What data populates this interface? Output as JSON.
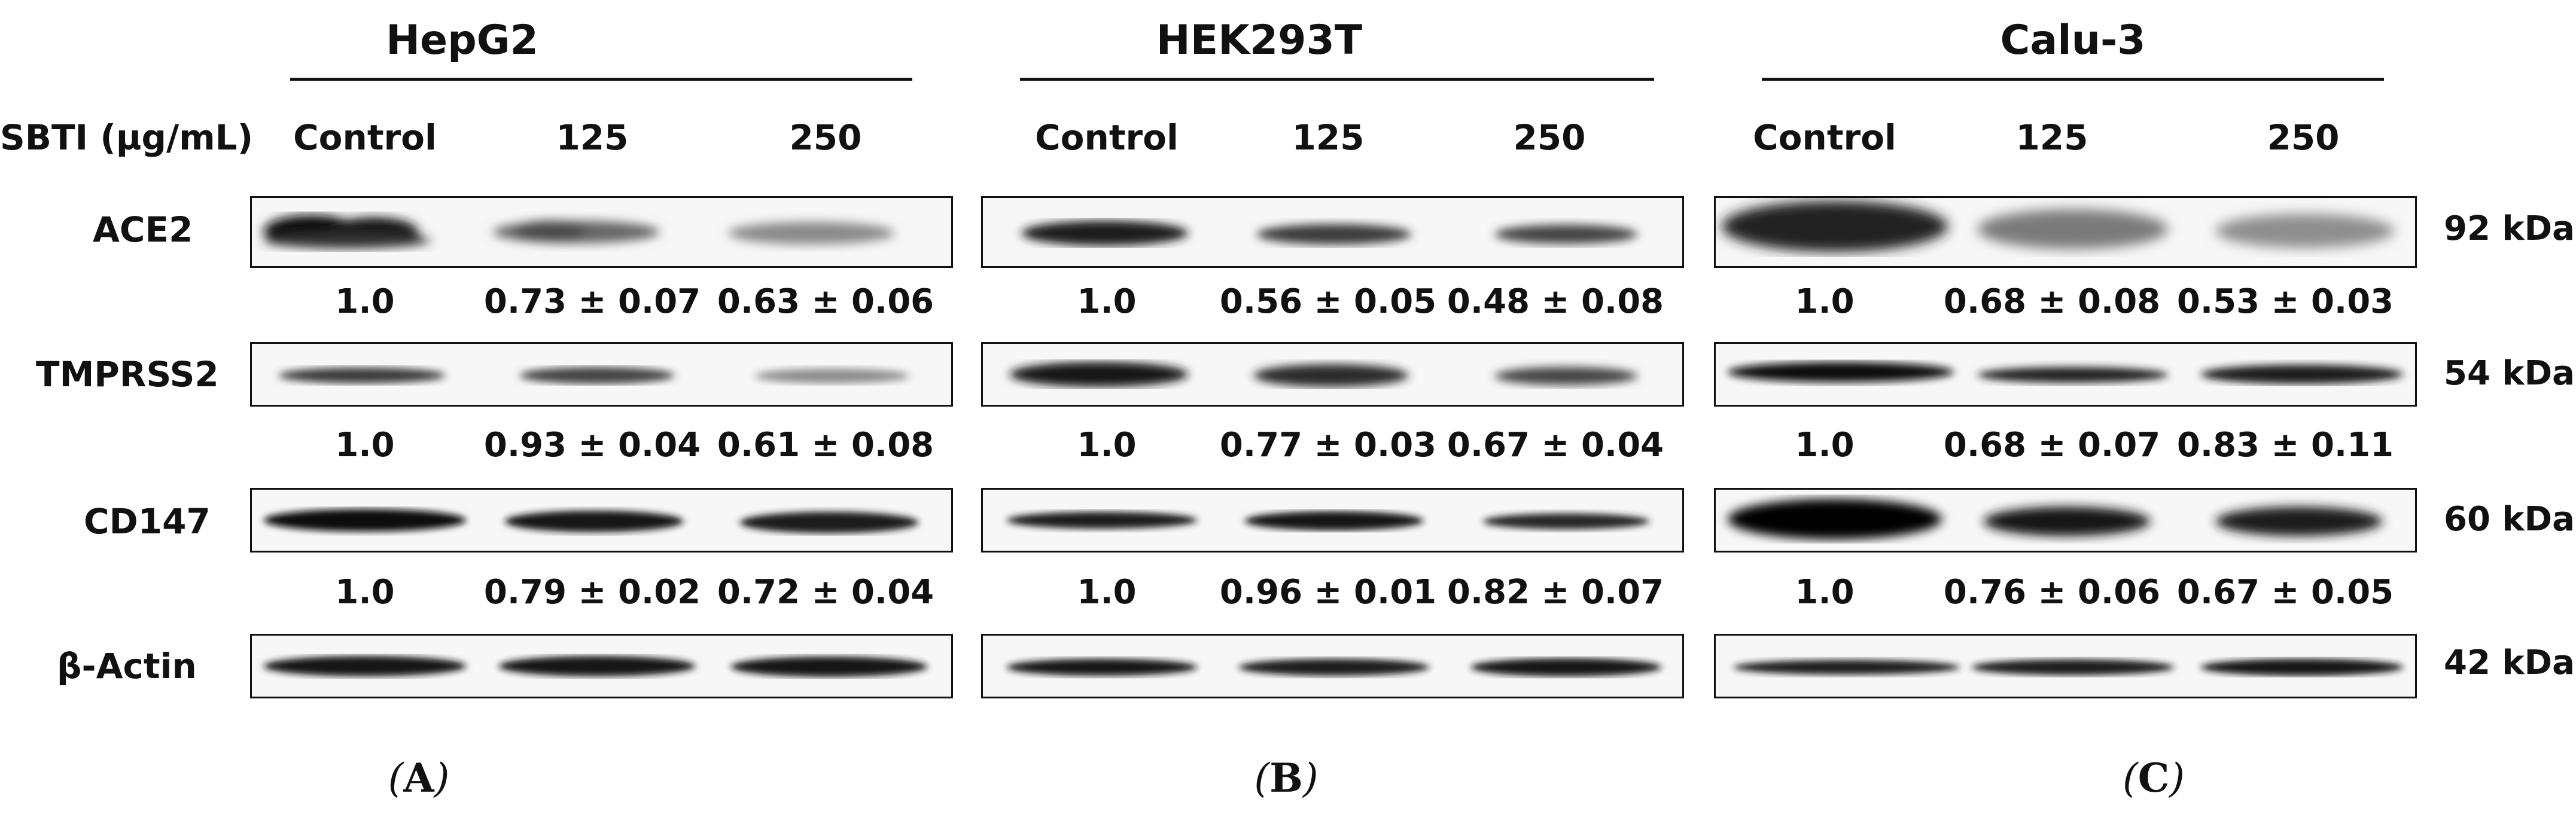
{
  "panels": [
    {
      "title": "HepG2",
      "label_open": "(",
      "label_letter": "A",
      "label_close": ")",
      "columns": [
        "Control",
        "125",
        "250"
      ],
      "quant": [
        [
          "1.0",
          "0.73 ± 0.07",
          "0.63 ± 0.06"
        ],
        [
          "1.0",
          "0.93 ± 0.04",
          "0.61 ± 0.08"
        ],
        [
          "1.0",
          "0.79 ± 0.02",
          "0.72 ± 0.04"
        ]
      ]
    },
    {
      "title": "HEK293T",
      "label_open": "(",
      "label_letter": "B",
      "label_close": ")",
      "columns": [
        "Control",
        "125",
        "250"
      ],
      "quant": [
        [
          "1.0",
          "0.56 ± 0.05",
          "0.48 ± 0.08"
        ],
        [
          "1.0",
          "0.77 ± 0.03",
          "0.67 ± 0.04"
        ],
        [
          "1.0",
          "0.96 ± 0.01",
          "0.82 ± 0.07"
        ]
      ]
    },
    {
      "title": "Calu-3",
      "label_open": "(",
      "label_letter": "C",
      "label_close": ")",
      "columns": [
        "Control",
        "125",
        "250"
      ],
      "quant": [
        [
          "1.0",
          "0.68 ± 0.08",
          "0.53 ± 0.03"
        ],
        [
          "1.0",
          "0.68 ± 0.07",
          "0.83 ± 0.11"
        ],
        [
          "1.0",
          "0.76 ± 0.06",
          "0.67 ± 0.05"
        ]
      ]
    }
  ],
  "treatment_label": "SBTI (µg/mL)",
  "proteins": [
    "ACE2",
    "TMPRSS2",
    "CD147",
    "β-Actin"
  ],
  "molecular_weights": [
    "92 kDa",
    "54 kDa",
    "60 kDa",
    "42 kDa"
  ]
}
